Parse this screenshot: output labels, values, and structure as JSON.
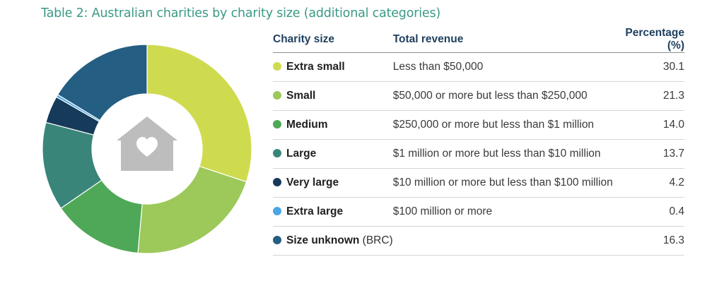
{
  "title": "Table 2: Australian charities by charity size (additional categories)",
  "table": {
    "headers": {
      "size": "Charity size",
      "revenue": "Total revenue",
      "percentage": "Percentage (%)"
    },
    "rows": [
      {
        "size": "Extra small",
        "note": "",
        "revenue": "Less than $50,000",
        "percentage": "30.1",
        "color": "#cfdb4f"
      },
      {
        "size": "Small",
        "note": "",
        "revenue": "$50,000 or more but less than $250,000",
        "percentage": "21.3",
        "color": "#9cc95a"
      },
      {
        "size": "Medium",
        "note": "",
        "revenue": "$250,000 or more but less than $1 million",
        "percentage": "14.0",
        "color": "#4ea857"
      },
      {
        "size": "Large",
        "note": "",
        "revenue": "$1 million or more but less than $10 million",
        "percentage": "13.7",
        "color": "#39857a"
      },
      {
        "size": "Very large",
        "note": "",
        "revenue": "$10 million or more but less than $100 million",
        "percentage": "4.2",
        "color": "#163a59"
      },
      {
        "size": "Extra large",
        "note": "",
        "revenue": "$100 million or more",
        "percentage": "0.4",
        "color": "#4aa6e2"
      },
      {
        "size": "Size unknown",
        "note": "(BRC)",
        "revenue": "",
        "percentage": "16.3",
        "color": "#245e82"
      }
    ]
  },
  "chart_data": {
    "type": "pie",
    "donut": true,
    "center_icon": "house-heart-icon",
    "categories": [
      "Extra small",
      "Small",
      "Medium",
      "Large",
      "Very large",
      "Extra large",
      "Size unknown"
    ],
    "values": [
      30.1,
      21.3,
      14.0,
      13.7,
      4.2,
      0.4,
      16.3
    ],
    "colors": [
      "#cfdb4f",
      "#9cc95a",
      "#4ea857",
      "#39857a",
      "#163a59",
      "#4aa6e2",
      "#245e82"
    ],
    "separator_color": "#ffffff",
    "icon_color": "#bdbdbd"
  }
}
